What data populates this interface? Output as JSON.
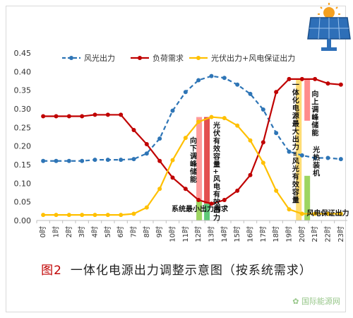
{
  "chart_data": {
    "type": "line",
    "categories": [
      "0时",
      "1时",
      "2时",
      "3时",
      "4时",
      "5时",
      "6时",
      "7时",
      "8时",
      "9时",
      "10时",
      "11时",
      "12时",
      "13时",
      "14时",
      "15时",
      "16时",
      "17时",
      "18时",
      "19时",
      "20时",
      "21时",
      "22时",
      "23时"
    ],
    "ylim": [
      0,
      0.45
    ],
    "yticks": [
      "0.00",
      "0.05",
      "0.10",
      "0.15",
      "0.20",
      "0.25",
      "0.30",
      "0.35",
      "0.40",
      "0.45"
    ],
    "grid": false,
    "legend_position": "top",
    "series": [
      {
        "name": "风光出力",
        "color": "#2e75b6",
        "style": "dashed",
        "marker": "circle",
        "values": [
          0.16,
          0.16,
          0.16,
          0.16,
          0.163,
          0.163,
          0.163,
          0.165,
          0.18,
          0.22,
          0.295,
          0.345,
          0.377,
          0.388,
          0.383,
          0.365,
          0.34,
          0.298,
          0.235,
          0.185,
          0.175,
          0.168,
          0.168,
          0.165
        ]
      },
      {
        "name": "负荷需求",
        "color": "#c00000",
        "style": "solid",
        "marker": "circle",
        "values": [
          0.28,
          0.28,
          0.28,
          0.28,
          0.284,
          0.284,
          0.284,
          0.243,
          0.205,
          0.16,
          0.115,
          0.085,
          0.055,
          0.045,
          0.055,
          0.08,
          0.122,
          0.21,
          0.345,
          0.38,
          0.38,
          0.38,
          0.368,
          0.365
        ]
      },
      {
        "name": "光伏出力+风电保证出力",
        "color": "#ffc000",
        "style": "solid",
        "marker": "circle",
        "values": [
          0.015,
          0.015,
          0.015,
          0.015,
          0.015,
          0.015,
          0.015,
          0.018,
          0.035,
          0.085,
          0.162,
          0.222,
          0.265,
          0.278,
          0.275,
          0.255,
          0.215,
          0.155,
          0.08,
          0.03,
          0.018,
          0.018,
          0.018,
          0.018
        ]
      }
    ],
    "bands": [
      {
        "id": "band-13h-red",
        "x": 12.05,
        "y0": 0.055,
        "y1": 0.278,
        "color": "#ff9090"
      },
      {
        "id": "band-13h-green",
        "x": 12.05,
        "y0": 0.0,
        "y1": 0.055,
        "color": "#92d050"
      },
      {
        "id": "band-13h-red2",
        "x": 12.65,
        "y0": 0.045,
        "y1": 0.278,
        "color": "#e03c3c"
      },
      {
        "id": "band-13h-green2",
        "x": 12.65,
        "y0": 0.0,
        "y1": 0.045,
        "color": "#4fc36a"
      },
      {
        "id": "band-20h-red",
        "x": 20.4,
        "y0": 0.268,
        "y1": 0.38,
        "color": "#ff8080"
      },
      {
        "id": "band-20h-green",
        "x": 20.4,
        "y0": 0.0,
        "y1": 0.12,
        "color": "#92d050"
      },
      {
        "id": "band-20h-yellow",
        "x": 19.75,
        "y0": 0.0,
        "y1": 0.38,
        "color": "#ffd966"
      }
    ],
    "annotations": [
      {
        "id": "ann-down-peak",
        "text": "向下调峰储能",
        "x": 11.5,
        "y": 0.225,
        "vertical": true
      },
      {
        "id": "ann-pv-effective",
        "text": "光伏有效容量+风电有效出力",
        "x": 13.3,
        "y": 0.265,
        "vertical": true
      },
      {
        "id": "ann-sys-min",
        "text": "系统最小出力需求",
        "x": 12.1,
        "y": 0.025,
        "vertical": false
      },
      {
        "id": "ann-integrated-max",
        "text": "一体化电源最大出力=风光有效容量",
        "x": 19.4,
        "y": 0.375,
        "vertical": true
      },
      {
        "id": "ann-up-peak",
        "text": "向上调峰储能",
        "x": 20.9,
        "y": 0.35,
        "vertical": true
      },
      {
        "id": "ann-csp",
        "text": "光热装机",
        "x": 21.0,
        "y": 0.2,
        "vertical": true
      },
      {
        "id": "ann-wind-guarantee",
        "text": "风电保证出力",
        "x": 22.0,
        "y": 0.013,
        "vertical": false
      }
    ]
  },
  "caption": {
    "fig_no": "图2",
    "title": "一体化电源出力调整示意图（按系统需求）"
  }
}
